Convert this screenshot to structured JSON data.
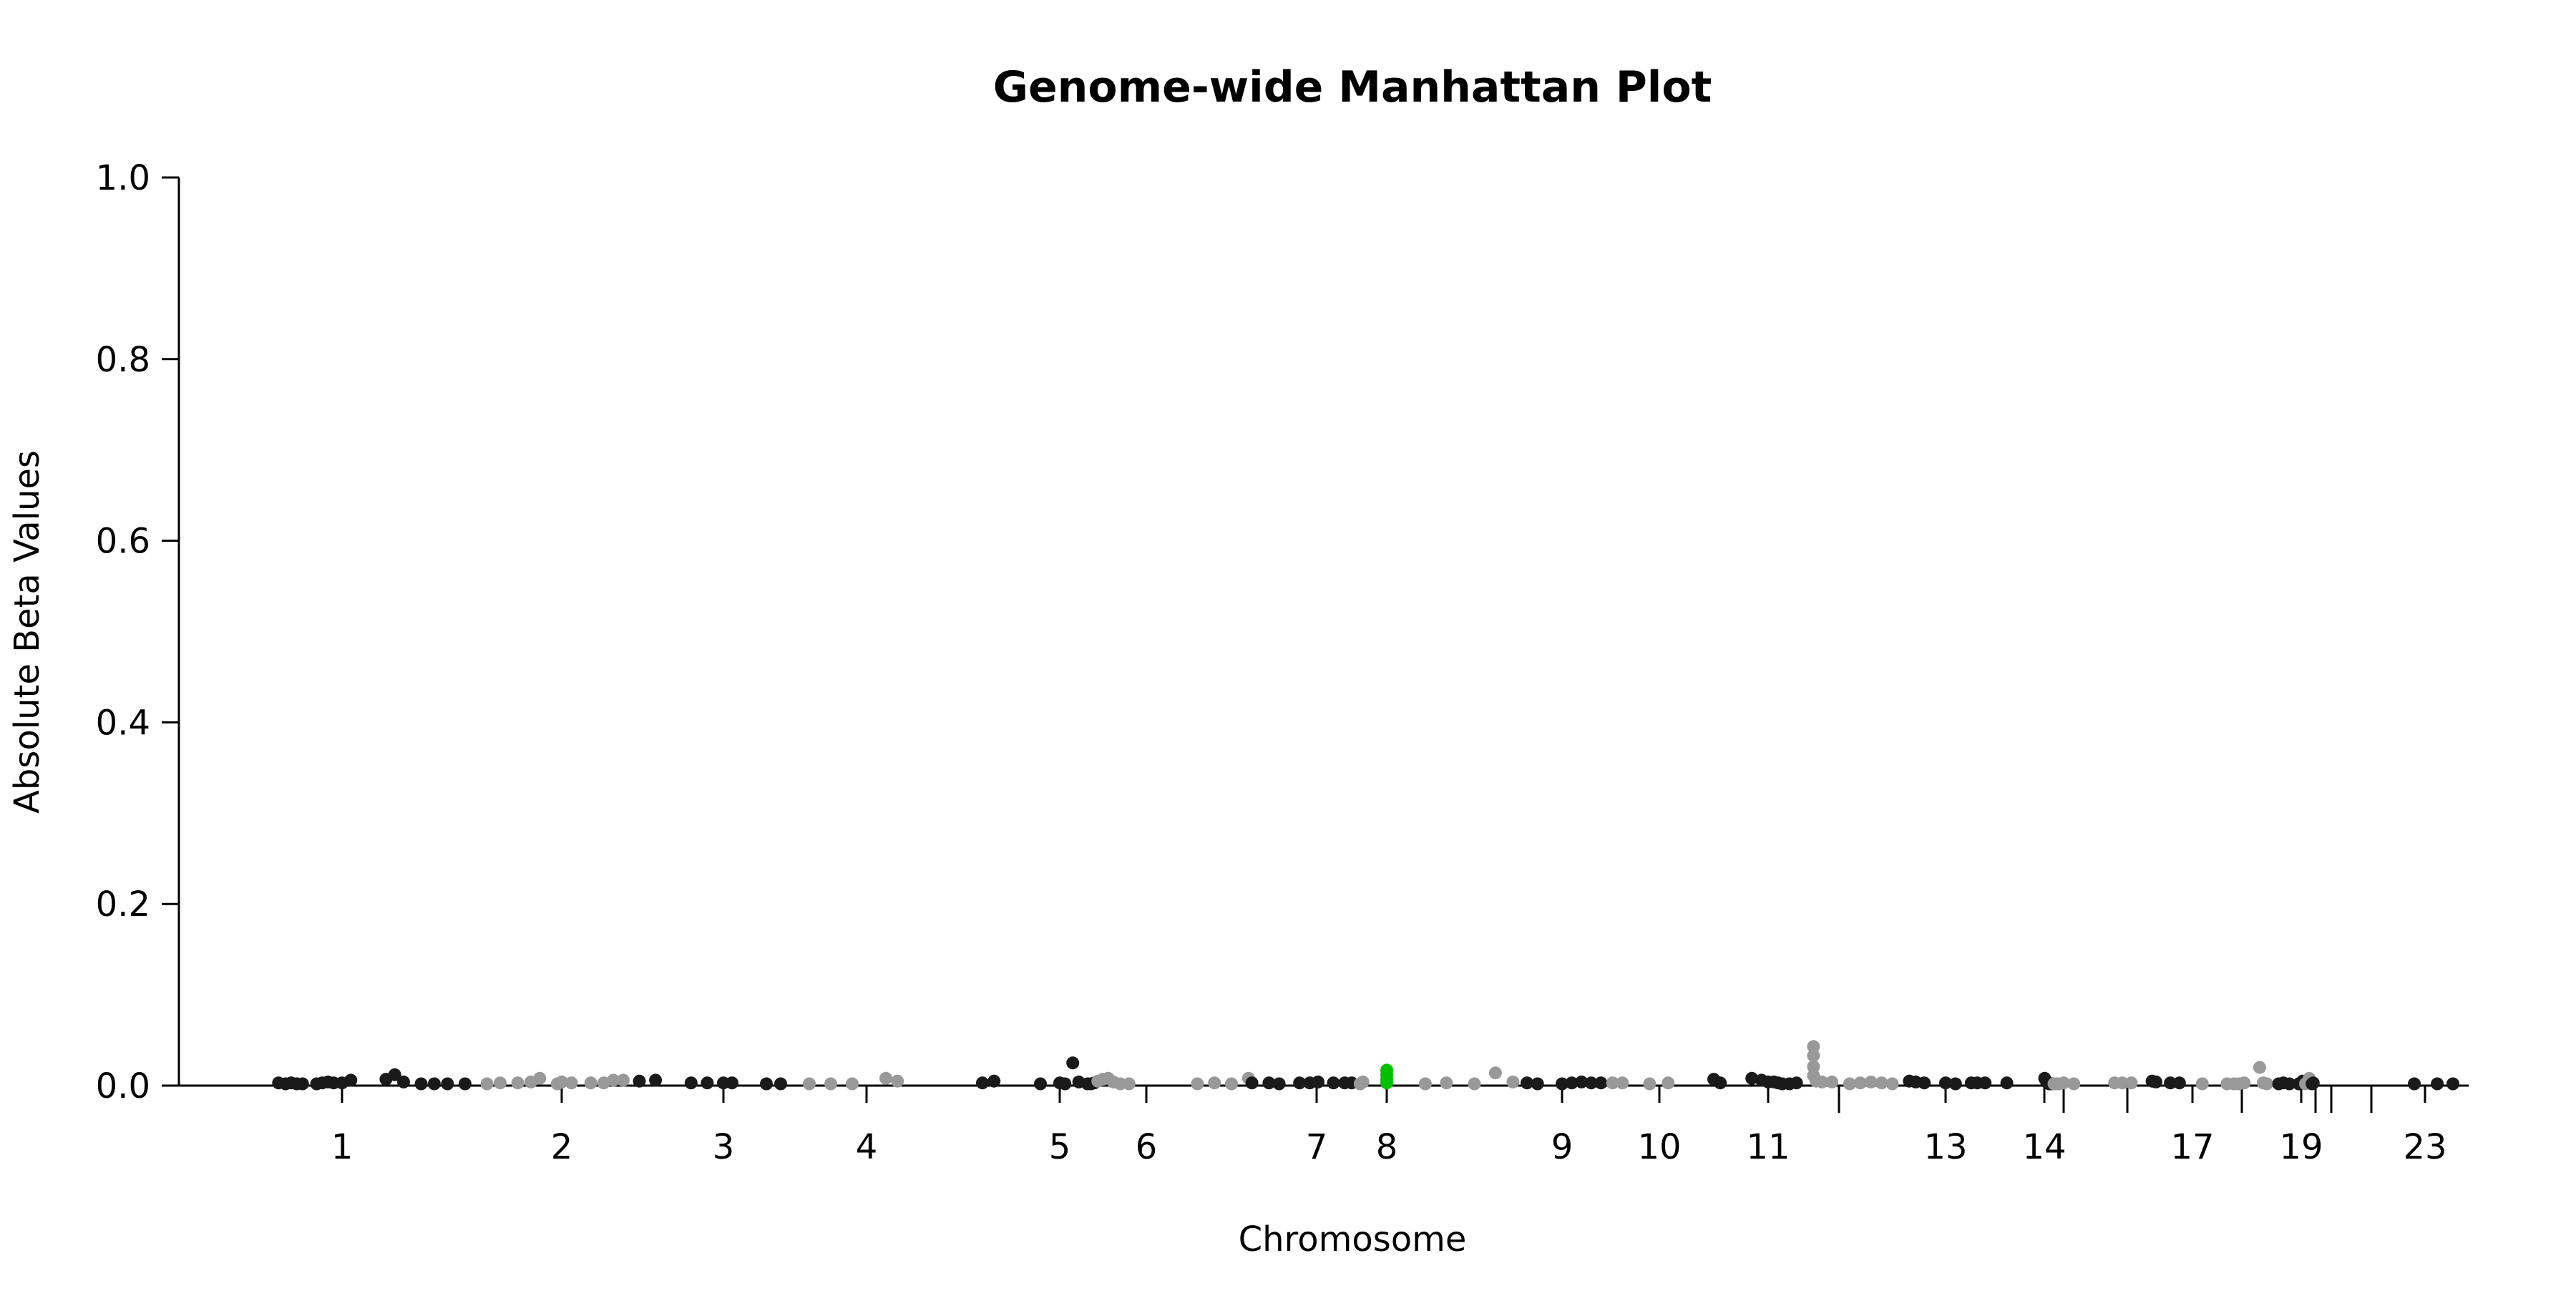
{
  "chart_data": {
    "type": "scatter",
    "title": "Genome-wide Manhattan Plot",
    "xlabel": "Chromosome",
    "ylabel": "Absolute Beta Values",
    "ylim": [
      0,
      1
    ],
    "yticks": [
      "0.0",
      "0.2",
      "0.4",
      "0.6",
      "0.8",
      "1.0"
    ],
    "grid": false,
    "legend": "none",
    "x_axis_tick_labels": [
      {
        "label": "1",
        "at": 1
      },
      {
        "label": "2",
        "at": 2
      },
      {
        "label": "3",
        "at": 3
      },
      {
        "label": "4",
        "at": 4
      },
      {
        "label": "5",
        "at": 5
      },
      {
        "label": "6",
        "at": 6
      },
      {
        "label": "7",
        "at": 7
      },
      {
        "label": "8",
        "at": 8
      },
      {
        "label": "9",
        "at": 9
      },
      {
        "label": "10",
        "at": 10
      },
      {
        "label": "11",
        "at": 11
      },
      {
        "label": "13",
        "at": 13
      },
      {
        "label": "14",
        "at": 14
      },
      {
        "label": "17",
        "at": 17
      },
      {
        "label": "19",
        "at": 19
      },
      {
        "label": "23",
        "at": 23
      }
    ],
    "x_axis_unlabeled_ticks": [
      12,
      15,
      16,
      18,
      20,
      21,
      22
    ],
    "colors": {
      "odd_chromosome": "#1a1a1a",
      "even_chromosome": "#999999",
      "highlight": "#00c000"
    },
    "series": [
      {
        "chromosome": 1,
        "color": "#1a1a1a",
        "points": [
          [
            0.55,
            0.003
          ],
          [
            0.6,
            0.002
          ],
          [
            0.64,
            0.003
          ],
          [
            0.68,
            0.002
          ],
          [
            0.72,
            0.002
          ],
          [
            0.82,
            0.002
          ],
          [
            0.86,
            0.003
          ],
          [
            0.9,
            0.004
          ],
          [
            0.94,
            0.003
          ],
          [
            1.0,
            0.003
          ],
          [
            1.04,
            0.006
          ],
          [
            1.2,
            0.007
          ],
          [
            1.24,
            0.012
          ],
          [
            1.28,
            0.004
          ],
          [
            1.36,
            0.002
          ],
          [
            1.42,
            0.002
          ],
          [
            1.48,
            0.002
          ],
          [
            1.56,
            0.002
          ]
        ]
      },
      {
        "chromosome": 2,
        "color": "#999999",
        "points": [
          [
            1.66,
            0.002
          ],
          [
            1.72,
            0.003
          ],
          [
            1.8,
            0.003
          ],
          [
            1.86,
            0.004
          ],
          [
            1.9,
            0.008
          ],
          [
            1.98,
            0.002
          ],
          [
            2.0,
            0.004
          ],
          [
            2.06,
            0.003
          ],
          [
            2.18,
            0.003
          ],
          [
            2.26,
            0.003
          ],
          [
            2.32,
            0.006
          ],
          [
            2.38,
            0.006
          ]
        ]
      },
      {
        "chromosome": 3,
        "color": "#1a1a1a",
        "points": [
          [
            2.48,
            0.005
          ],
          [
            2.58,
            0.006
          ],
          [
            2.8,
            0.003
          ],
          [
            2.9,
            0.003
          ],
          [
            3.0,
            0.003
          ],
          [
            3.06,
            0.003
          ],
          [
            3.3,
            0.002
          ],
          [
            3.4,
            0.002
          ]
        ]
      },
      {
        "chromosome": 4,
        "color": "#999999",
        "points": [
          [
            3.6,
            0.002
          ],
          [
            3.75,
            0.002
          ],
          [
            3.9,
            0.002
          ],
          [
            4.1,
            0.008
          ],
          [
            4.16,
            0.005
          ]
        ]
      },
      {
        "chromosome": 5,
        "color": "#1a1a1a",
        "points": [
          [
            4.6,
            0.003
          ],
          [
            4.66,
            0.005
          ],
          [
            4.9,
            0.002
          ],
          [
            5.0,
            0.003
          ],
          [
            5.06,
            0.002
          ],
          [
            5.15,
            0.025
          ],
          [
            5.22,
            0.004
          ],
          [
            5.32,
            0.002
          ],
          [
            5.36,
            0.002
          ],
          [
            5.4,
            0.003
          ]
        ]
      },
      {
        "chromosome": 6,
        "color": "#999999",
        "points": [
          [
            5.44,
            0.005
          ],
          [
            5.5,
            0.007
          ],
          [
            5.56,
            0.008
          ],
          [
            5.62,
            0.004
          ],
          [
            5.7,
            0.002
          ],
          [
            5.8,
            0.002
          ],
          [
            6.3,
            0.002
          ],
          [
            6.4,
            0.003
          ],
          [
            6.5,
            0.002
          ],
          [
            6.6,
            0.008
          ]
        ]
      },
      {
        "chromosome": 7,
        "color": "#1a1a1a",
        "points": [
          [
            6.62,
            0.003
          ],
          [
            6.72,
            0.003
          ],
          [
            6.78,
            0.002
          ],
          [
            6.9,
            0.003
          ],
          [
            6.96,
            0.003
          ],
          [
            7.02,
            0.004
          ],
          [
            7.24,
            0.003
          ],
          [
            7.4,
            0.003
          ],
          [
            7.5,
            0.003
          ]
        ]
      },
      {
        "chromosome": 8,
        "color": "#999999",
        "points": [
          [
            7.62,
            0.002
          ],
          [
            7.66,
            0.004
          ],
          [
            8.22,
            0.002
          ],
          [
            8.34,
            0.003
          ],
          [
            8.5,
            0.002
          ],
          [
            8.62,
            0.014
          ],
          [
            8.72,
            0.004
          ]
        ]
      },
      {
        "chromosome": 8,
        "color": "#00c000",
        "highlight": true,
        "points": [
          [
            8.0,
            0.017
          ],
          [
            8.0,
            0.012
          ],
          [
            8.0,
            0.007
          ],
          [
            8.0,
            0.003
          ]
        ]
      },
      {
        "chromosome": 9,
        "color": "#1a1a1a",
        "points": [
          [
            8.8,
            0.003
          ],
          [
            8.86,
            0.002
          ],
          [
            9.0,
            0.002
          ],
          [
            9.1,
            0.003
          ],
          [
            9.2,
            0.004
          ],
          [
            9.3,
            0.003
          ],
          [
            9.4,
            0.003
          ]
        ]
      },
      {
        "chromosome": 10,
        "color": "#999999",
        "points": [
          [
            9.52,
            0.003
          ],
          [
            9.62,
            0.003
          ],
          [
            9.9,
            0.002
          ],
          [
            10.08,
            0.003
          ]
        ]
      },
      {
        "chromosome": 11,
        "color": "#1a1a1a",
        "points": [
          [
            10.5,
            0.007
          ],
          [
            10.56,
            0.003
          ],
          [
            10.85,
            0.008
          ],
          [
            10.94,
            0.006
          ],
          [
            11.0,
            0.004
          ],
          [
            11.08,
            0.004
          ],
          [
            11.14,
            0.003
          ],
          [
            11.2,
            0.002
          ],
          [
            11.3,
            0.002
          ],
          [
            11.4,
            0.003
          ]
        ]
      },
      {
        "chromosome": 12,
        "color": "#999999",
        "points": [
          [
            11.64,
            0.043
          ],
          [
            11.64,
            0.033
          ],
          [
            11.64,
            0.021
          ],
          [
            11.64,
            0.011
          ],
          [
            11.68,
            0.005
          ],
          [
            11.76,
            0.004
          ],
          [
            11.9,
            0.004
          ],
          [
            12.1,
            0.002
          ],
          [
            12.2,
            0.003
          ],
          [
            12.3,
            0.004
          ],
          [
            12.4,
            0.003
          ],
          [
            12.5,
            0.002
          ]
        ]
      },
      {
        "chromosome": 13,
        "color": "#1a1a1a",
        "points": [
          [
            12.66,
            0.005
          ],
          [
            12.72,
            0.004
          ],
          [
            12.8,
            0.003
          ],
          [
            13.0,
            0.003
          ],
          [
            13.1,
            0.002
          ],
          [
            13.26,
            0.003
          ],
          [
            13.32,
            0.003
          ],
          [
            13.4,
            0.003
          ]
        ]
      },
      {
        "chromosome": 14,
        "color": "#1a1a1a",
        "points": [
          [
            13.62,
            0.003
          ],
          [
            14.02,
            0.008
          ],
          [
            14.12,
            0.004
          ],
          [
            14.2,
            0.003
          ],
          [
            14.26,
            0.002
          ],
          [
            14.32,
            0.002
          ],
          [
            14.4,
            0.002
          ]
        ]
      },
      {
        "chromosome": 15,
        "color": "#999999",
        "points": [
          [
            14.5,
            0.002
          ],
          [
            14.62,
            0.002
          ],
          [
            14.74,
            0.002
          ],
          [
            15.0,
            0.003
          ],
          [
            15.16,
            0.002
          ]
        ]
      },
      {
        "chromosome": 16,
        "color": "#999999",
        "points": [
          [
            15.8,
            0.003
          ],
          [
            15.92,
            0.003
          ],
          [
            16.06,
            0.003
          ]
        ]
      },
      {
        "chromosome": 17,
        "color": "#1a1a1a",
        "points": [
          [
            16.38,
            0.005
          ],
          [
            16.44,
            0.004
          ],
          [
            16.66,
            0.003
          ],
          [
            16.8,
            0.003
          ]
        ]
      },
      {
        "chromosome": 18,
        "color": "#999999",
        "points": [
          [
            17.2,
            0.002
          ],
          [
            17.7,
            0.002
          ],
          [
            17.84,
            0.002
          ],
          [
            17.94,
            0.002
          ],
          [
            18.04,
            0.003
          ],
          [
            18.3,
            0.02
          ],
          [
            18.36,
            0.003
          ],
          [
            18.42,
            0.002
          ]
        ]
      },
      {
        "chromosome": 19,
        "color": "#1a1a1a",
        "points": [
          [
            18.62,
            0.002
          ],
          [
            18.7,
            0.003
          ],
          [
            18.8,
            0.002
          ],
          [
            18.96,
            0.002
          ],
          [
            19.1,
            0.005
          ]
        ]
      },
      {
        "chromosome": 20,
        "color": "#999999",
        "points": [
          [
            19.3,
            0.002
          ],
          [
            19.46,
            0.003
          ],
          [
            19.56,
            0.008
          ],
          [
            19.64,
            0.004
          ]
        ]
      },
      {
        "chromosome": 21,
        "color": "#1a1a1a",
        "points": [
          [
            19.76,
            0.002
          ],
          [
            19.84,
            0.003
          ]
        ]
      },
      {
        "chromosome": 23,
        "color": "#1a1a1a",
        "points": [
          [
            22.8,
            0.002
          ],
          [
            23.14,
            0.002
          ],
          [
            23.32,
            0.002
          ]
        ]
      }
    ]
  }
}
